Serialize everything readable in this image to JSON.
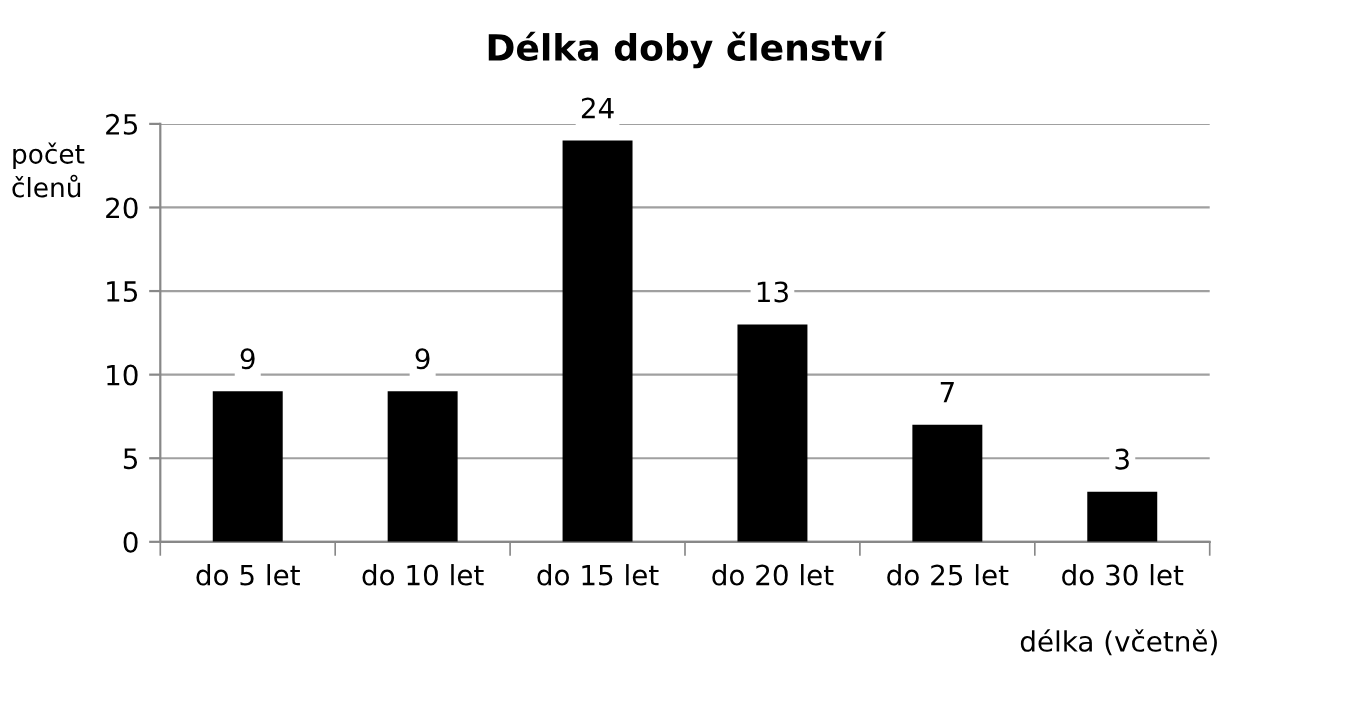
{
  "chart_data": {
    "type": "bar",
    "title": "Délka doby členství",
    "ylabel": "počet\nčlenů",
    "xlabel": "délka (včetně)",
    "categories": [
      "do 5 let",
      "do 10 let",
      "do 15 let",
      "do 20 let",
      "do 25 let",
      "do 30 let"
    ],
    "values": [
      9,
      9,
      24,
      13,
      7,
      3
    ],
    "color": "#000000",
    "ylim": [
      0,
      25
    ],
    "yticks": [
      0,
      5,
      10,
      15,
      20,
      25
    ],
    "grid": "y",
    "data_labels": true
  }
}
